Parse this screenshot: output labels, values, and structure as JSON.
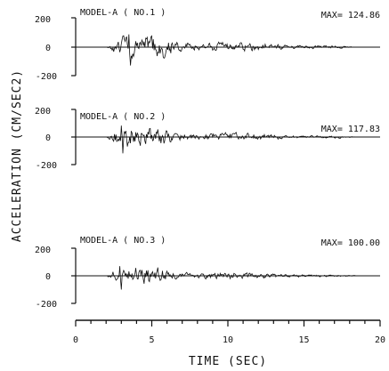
{
  "chart_data": [
    {
      "type": "line",
      "label": "MODEL-A ( NO.1 )",
      "max_label": "MAX= 124.86",
      "max_value": 124.86,
      "ylim": [
        -200,
        200
      ],
      "yticks": [
        "200",
        "0",
        "-200"
      ],
      "xlim": [
        0,
        20
      ],
      "active_start": 2.0,
      "active_end": 18.5
    },
    {
      "type": "line",
      "label": "MODEL-A ( NO.2 )",
      "max_label": "MAX= 117.83",
      "max_value": 117.83,
      "ylim": [
        -200,
        200
      ],
      "yticks": [
        "200",
        "0",
        "-200"
      ],
      "xlim": [
        0,
        20
      ],
      "active_start": 2.0,
      "active_end": 18.5
    },
    {
      "type": "line",
      "label": "MODEL-A ( NO.3 )",
      "max_label": "MAX= 100.00",
      "max_value": 100.0,
      "ylim": [
        -200,
        200
      ],
      "yticks": [
        "200",
        "0",
        "-200"
      ],
      "xlim": [
        0,
        20
      ],
      "active_start": 2.0,
      "active_end": 18.5
    }
  ],
  "x_axis": {
    "label": "TIME (SEC)",
    "ticks": [
      "0",
      "5",
      "10",
      "15",
      "20"
    ]
  },
  "y_axis": {
    "label": "ACCELERATION (CM/SEC2)"
  },
  "colors": {
    "line": "#111111",
    "background": "#ffffff"
  }
}
